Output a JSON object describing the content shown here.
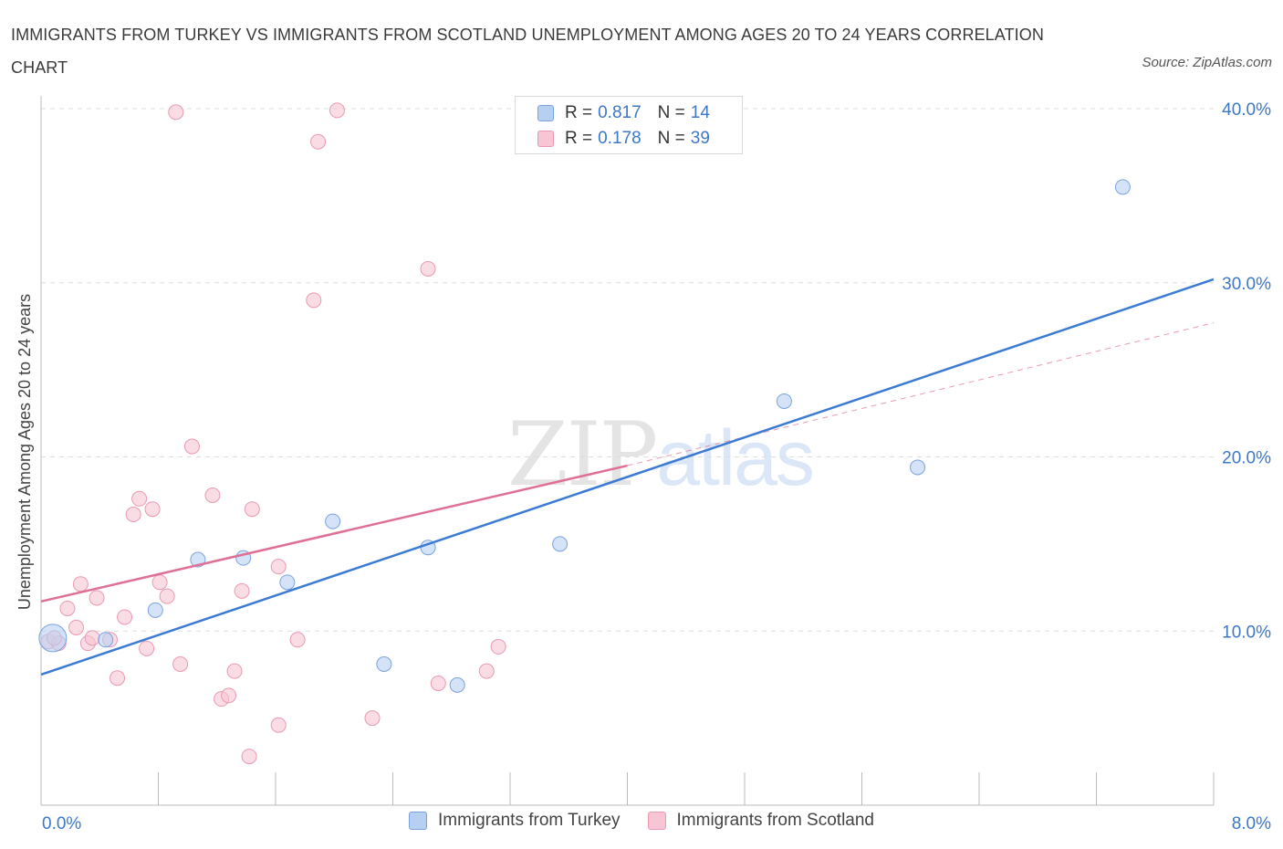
{
  "title": "IMMIGRANTS FROM TURKEY VS IMMIGRANTS FROM SCOTLAND UNEMPLOYMENT AMONG AGES 20 TO 24 YEARS CORRELATION CHART",
  "source": "Source: ZipAtlas.com",
  "watermark": {
    "zip": "ZIP",
    "atlas": "atlas"
  },
  "legend": {
    "turkey": {
      "r_label": "R =",
      "r_value": "0.817",
      "n_label": "N =",
      "n_value": "14"
    },
    "scotland": {
      "r_label": "R =",
      "r_value": "0.178",
      "n_label": "N =",
      "n_value": "39"
    }
  },
  "colors": {
    "turkey_fill": "#b7d0f2",
    "turkey_stroke": "#7aa3dd",
    "turkey_line": "#3b7bd4",
    "scotland_fill": "#f7c5d3",
    "scotland_stroke": "#e99ab2",
    "scotland_line": "#e06f96",
    "tick_label": "#3c78c8",
    "grid": "#dddddd"
  },
  "chart_data": {
    "type": "scatter",
    "title": "IMMIGRANTS FROM TURKEY VS IMMIGRANTS FROM SCOTLAND UNEMPLOYMENT AMONG AGES 20 TO 24 YEARS CORRELATION CHART",
    "xlabel": "",
    "ylabel": "Unemployment Among Ages 20 to 24 years",
    "xlim": [
      0,
      8
    ],
    "ylim": [
      0,
      40
    ],
    "x_tick_labels": [
      "0.0%",
      "8.0%"
    ],
    "y_ticks": [
      10,
      20,
      30,
      40
    ],
    "y_tick_labels": [
      "10.0%",
      "20.0%",
      "30.0%",
      "40.0%"
    ],
    "grid": true,
    "legend_position": "top-center",
    "series": [
      {
        "name": "Immigrants from Turkey",
        "points": [
          [
            0.08,
            9.6
          ],
          [
            0.44,
            9.5
          ],
          [
            0.78,
            11.2
          ],
          [
            1.07,
            14.1
          ],
          [
            1.38,
            14.2
          ],
          [
            1.68,
            12.8
          ],
          [
            1.99,
            16.3
          ],
          [
            2.34,
            8.1
          ],
          [
            2.64,
            14.8
          ],
          [
            2.84,
            6.9
          ],
          [
            3.54,
            15.0
          ],
          [
            5.07,
            23.2
          ],
          [
            5.98,
            19.4
          ],
          [
            7.38,
            35.5
          ]
        ],
        "trend": {
          "x0": 0.0,
          "y0": 7.5,
          "x1": 8.0,
          "y1": 30.2
        }
      },
      {
        "name": "Immigrants from Scotland",
        "points": [
          [
            0.05,
            9.4
          ],
          [
            0.12,
            9.3
          ],
          [
            0.18,
            11.3
          ],
          [
            0.24,
            10.2
          ],
          [
            0.27,
            12.7
          ],
          [
            0.32,
            9.3
          ],
          [
            0.38,
            11.9
          ],
          [
            0.47,
            9.5
          ],
          [
            0.52,
            7.3
          ],
          [
            0.57,
            10.8
          ],
          [
            0.63,
            16.7
          ],
          [
            0.67,
            17.6
          ],
          [
            0.72,
            9.0
          ],
          [
            0.76,
            17.0
          ],
          [
            0.81,
            12.8
          ],
          [
            0.86,
            12.0
          ],
          [
            0.95,
            8.1
          ],
          [
            0.92,
            39.8
          ],
          [
            1.03,
            20.6
          ],
          [
            1.17,
            17.8
          ],
          [
            1.23,
            6.1
          ],
          [
            1.28,
            6.3
          ],
          [
            1.32,
            7.7
          ],
          [
            1.37,
            12.3
          ],
          [
            1.42,
            2.8
          ],
          [
            1.44,
            17.0
          ],
          [
            1.62,
            4.6
          ],
          [
            1.62,
            13.7
          ],
          [
            1.75,
            9.5
          ],
          [
            1.86,
            29.0
          ],
          [
            1.89,
            38.1
          ],
          [
            2.02,
            39.9
          ],
          [
            2.26,
            5.0
          ],
          [
            2.64,
            30.8
          ],
          [
            2.71,
            7.0
          ],
          [
            3.04,
            7.7
          ],
          [
            3.12,
            9.1
          ],
          [
            0.09,
            9.6
          ],
          [
            0.35,
            9.6
          ]
        ],
        "trend": {
          "x0": 0.0,
          "y0": 11.7,
          "x1": 4.0,
          "y1": 19.5
        },
        "trend_extension": {
          "x0": 4.0,
          "y0": 19.5,
          "x1": 8.0,
          "y1": 27.7
        }
      }
    ]
  }
}
